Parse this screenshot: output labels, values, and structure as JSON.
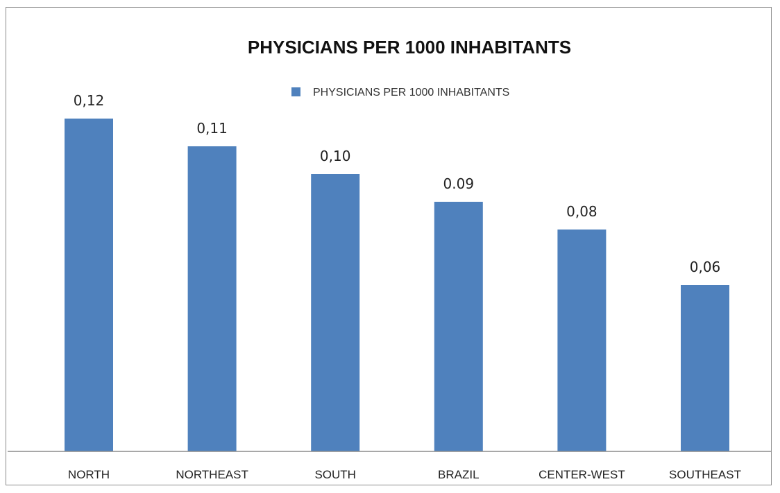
{
  "chart_data": {
    "type": "bar",
    "title": "PHYSICIANS PER 1000 INHABITANTS",
    "categories": [
      "NORTH",
      "NORTHEAST",
      "SOUTH",
      "BRAZIL",
      "CENTER-WEST",
      "SOUTHEAST"
    ],
    "series": [
      {
        "name": "PHYSICIANS PER 1000 INHABITANTS",
        "values": [
          0.12,
          0.11,
          0.1,
          0.09,
          0.08,
          0.06
        ],
        "labels": [
          "0,12",
          "0,11",
          "0,10",
          "0.09",
          "0,08",
          "0,06"
        ],
        "color": "#4f81bd"
      }
    ],
    "xlabel": "",
    "ylabel": "",
    "ylim": [
      0,
      0.15
    ],
    "grid": false,
    "legend_position": "top"
  }
}
